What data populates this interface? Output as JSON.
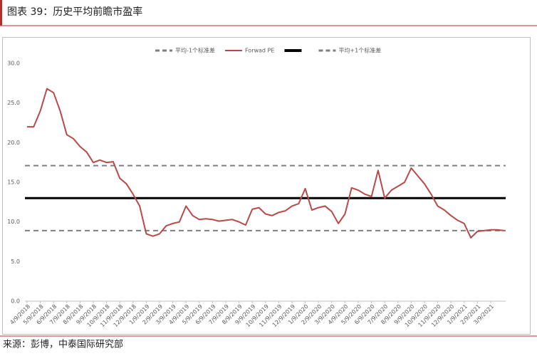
{
  "header": {
    "title": "图表 39：历史平均前瞻市盈率"
  },
  "chart_data": {
    "type": "line",
    "categories": [
      "4/9/2018",
      null,
      "5/9/2018",
      null,
      "6/9/2018",
      null,
      "7/9/2018",
      null,
      "8/9/2018",
      null,
      "9/9/2018",
      null,
      "10/9/2018",
      null,
      "11/9/2018",
      null,
      "12/9/2018",
      null,
      "1/9/2019",
      null,
      "2/9/2019",
      null,
      "3/9/2019",
      null,
      "4/9/2019",
      null,
      "5/9/2019",
      null,
      "6/9/2019",
      null,
      "7/9/2019",
      null,
      "8/9/2019",
      null,
      "9/9/2019",
      null,
      "10/9/2019",
      null,
      "11/9/2019",
      null,
      "12/9/2019",
      null,
      "1/9/2020",
      null,
      "2/9/2020",
      null,
      "3/9/2020",
      null,
      "4/9/2020",
      null,
      "5/9/2020",
      null,
      "6/9/2020",
      null,
      "7/9/2020",
      null,
      "8/9/2020",
      null,
      "9/9/2020",
      null,
      "10/9/2020",
      null,
      "11/9/2020",
      null,
      "12/9/2020",
      null,
      "1/9/2021",
      null,
      "2/9/2021",
      null,
      "3/9/2021",
      null,
      null
    ],
    "series": [
      {
        "name": "Forwad PE",
        "color": "#b84a47",
        "values": [
          22,
          22,
          24,
          26.8,
          26.3,
          24,
          21,
          20.5,
          19.5,
          18.8,
          17.5,
          17.8,
          17.5,
          17.6,
          15.5,
          14.8,
          13.5,
          12,
          8.5,
          8.2,
          8.5,
          9.5,
          9.8,
          10,
          12,
          10.8,
          10.3,
          10.4,
          10.3,
          10.1,
          10.2,
          10.3,
          10,
          9.6,
          11.6,
          11.8,
          11,
          10.8,
          11.2,
          11.4,
          12,
          12.3,
          14.2,
          11.5,
          11.8,
          12,
          11.3,
          9.8,
          11,
          14.3,
          14,
          13.5,
          13.2,
          16.5,
          13,
          14,
          14.5,
          15,
          16.8,
          15.8,
          14.8,
          13.5,
          12,
          11.5,
          10.8,
          10.2,
          9.8,
          8,
          8.8,
          8.9,
          9,
          9,
          8.9
        ]
      }
    ],
    "hlines": [
      {
        "name": "平均-1个标准差",
        "color": "#7f7f7f",
        "dashed": true,
        "value": 8.9
      },
      {
        "color": "#000000",
        "dashed": false,
        "value": 13.0
      },
      {
        "name": "平均+1个标准差",
        "color": "#7f7f7f",
        "dashed": true,
        "value": 17.1
      }
    ],
    "ylim": [
      0,
      30
    ],
    "yticks": [
      {
        "value": 0,
        "label": "0.0"
      },
      {
        "value": 5,
        "label": "5.0"
      },
      {
        "value": 10,
        "label": "10.0"
      },
      {
        "value": 15,
        "label": "15.0"
      },
      {
        "value": 20,
        "label": "20.0"
      },
      {
        "value": 25,
        "label": "25.0"
      },
      {
        "value": 30,
        "label": "30.0"
      }
    ]
  },
  "footer": {
    "source": "来源：彭博，中泰国际研究部"
  }
}
